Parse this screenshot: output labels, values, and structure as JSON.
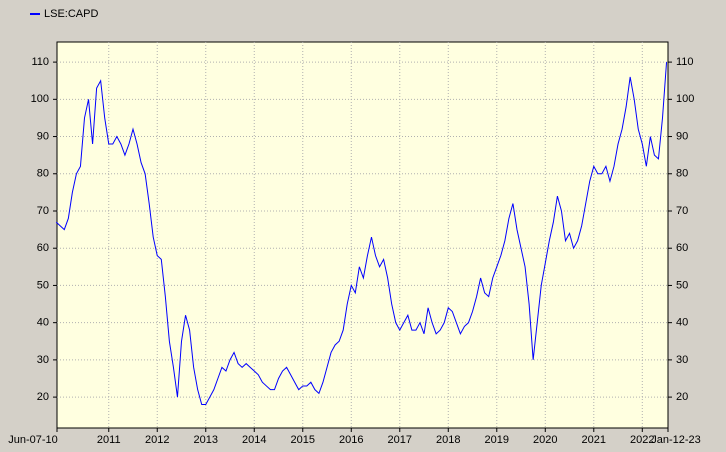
{
  "chart_data": {
    "type": "line",
    "legend": "top-left",
    "grid": true,
    "xlim": [
      "2010-06-07",
      "2023-01-12"
    ],
    "xticks": [
      {
        "value": "2010-06-07",
        "label": "Jun-07-10"
      },
      {
        "value": "2011-07",
        "label": "2011"
      },
      {
        "value": "2012-07",
        "label": "2012"
      },
      {
        "value": "2013-07",
        "label": "2013"
      },
      {
        "value": "2014-07",
        "label": "2014"
      },
      {
        "value": "2015-07",
        "label": "2015"
      },
      {
        "value": "2016-07",
        "label": "2016"
      },
      {
        "value": "2017-07",
        "label": "2017"
      },
      {
        "value": "2018-07",
        "label": "2018"
      },
      {
        "value": "2019-07",
        "label": "2019"
      },
      {
        "value": "2020-07",
        "label": "2020"
      },
      {
        "value": "2021-07",
        "label": "2021"
      },
      {
        "value": "2022-07",
        "label": "2022"
      },
      {
        "value": "2023-01-12",
        "label": "Jan-12-23"
      }
    ],
    "ylim": [
      11.7,
      115.4
    ],
    "yticks": [
      20,
      30,
      40,
      50,
      60,
      70,
      80,
      90,
      100,
      110
    ],
    "x": [
      "2010-06",
      "2010-07",
      "2010-08",
      "2010-09",
      "2010-10",
      "2010-11",
      "2010-12",
      "2011-01",
      "2011-02",
      "2011-03",
      "2011-04",
      "2011-05",
      "2011-06",
      "2011-07",
      "2011-08",
      "2011-09",
      "2011-10",
      "2011-11",
      "2011-12",
      "2012-01",
      "2012-02",
      "2012-03",
      "2012-04",
      "2012-05",
      "2012-06",
      "2012-07",
      "2012-08",
      "2012-09",
      "2012-10",
      "2012-11",
      "2012-12",
      "2013-01",
      "2013-02",
      "2013-03",
      "2013-04",
      "2013-05",
      "2013-06",
      "2013-07",
      "2013-08",
      "2013-09",
      "2013-10",
      "2013-11",
      "2013-12",
      "2014-01",
      "2014-02",
      "2014-03",
      "2014-04",
      "2014-05",
      "2014-06",
      "2014-07",
      "2014-08",
      "2014-09",
      "2014-10",
      "2014-11",
      "2014-12",
      "2015-01",
      "2015-02",
      "2015-03",
      "2015-04",
      "2015-05",
      "2015-06",
      "2015-07",
      "2015-08",
      "2015-09",
      "2015-10",
      "2015-11",
      "2015-12",
      "2016-01",
      "2016-02",
      "2016-03",
      "2016-04",
      "2016-05",
      "2016-06",
      "2016-07",
      "2016-08",
      "2016-09",
      "2016-10",
      "2016-11",
      "2016-12",
      "2017-01",
      "2017-02",
      "2017-03",
      "2017-04",
      "2017-05",
      "2017-06",
      "2017-07",
      "2017-08",
      "2017-09",
      "2017-10",
      "2017-11",
      "2017-12",
      "2018-01",
      "2018-02",
      "2018-03",
      "2018-04",
      "2018-05",
      "2018-06",
      "2018-07",
      "2018-08",
      "2018-09",
      "2018-10",
      "2018-11",
      "2018-12",
      "2019-01",
      "2019-02",
      "2019-03",
      "2019-04",
      "2019-05",
      "2019-06",
      "2019-07",
      "2019-08",
      "2019-09",
      "2019-10",
      "2019-11",
      "2019-12",
      "2020-01",
      "2020-02",
      "2020-03",
      "2020-04",
      "2020-05",
      "2020-06",
      "2020-07",
      "2020-08",
      "2020-09",
      "2020-10",
      "2020-11",
      "2020-12",
      "2021-01",
      "2021-02",
      "2021-03",
      "2021-04",
      "2021-05",
      "2021-06",
      "2021-07",
      "2021-08",
      "2021-09",
      "2021-10",
      "2021-11",
      "2021-12",
      "2022-01",
      "2022-02",
      "2022-03",
      "2022-04",
      "2022-05",
      "2022-06",
      "2022-07",
      "2022-08",
      "2022-09",
      "2022-10",
      "2022-11",
      "2022-12",
      "2023-01"
    ],
    "series": [
      {
        "name": "LSE:CAPD",
        "color": "#0000ff",
        "values": [
          67,
          66,
          65,
          68,
          75,
          80,
          82,
          95,
          100,
          88,
          103,
          105,
          95,
          88,
          88,
          90,
          88,
          85,
          88,
          92,
          88,
          83,
          80,
          72,
          63,
          58,
          57,
          47,
          35,
          28,
          20,
          35,
          42,
          38,
          28,
          22,
          18,
          18,
          20,
          22,
          25,
          28,
          27,
          30,
          32,
          29,
          28,
          29,
          28,
          27,
          26,
          24,
          23,
          22,
          22,
          25,
          27,
          28,
          26,
          24,
          22,
          23,
          23,
          24,
          22,
          21,
          24,
          28,
          32,
          34,
          35,
          38,
          45,
          50,
          48,
          55,
          52,
          58,
          63,
          58,
          55,
          57,
          52,
          45,
          40,
          38,
          40,
          42,
          38,
          38,
          40,
          37,
          44,
          40,
          37,
          38,
          40,
          44,
          43,
          40,
          37,
          39,
          40,
          43,
          47,
          52,
          48,
          47,
          52,
          55,
          58,
          62,
          68,
          72,
          65,
          60,
          55,
          45,
          30,
          40,
          50,
          56,
          62,
          67,
          74,
          70,
          62,
          64,
          60,
          62,
          66,
          72,
          78,
          82,
          80,
          80,
          82,
          78,
          82,
          88,
          92,
          98,
          106,
          100,
          92,
          88,
          82,
          90,
          85,
          84,
          95,
          110
        ]
      }
    ]
  }
}
